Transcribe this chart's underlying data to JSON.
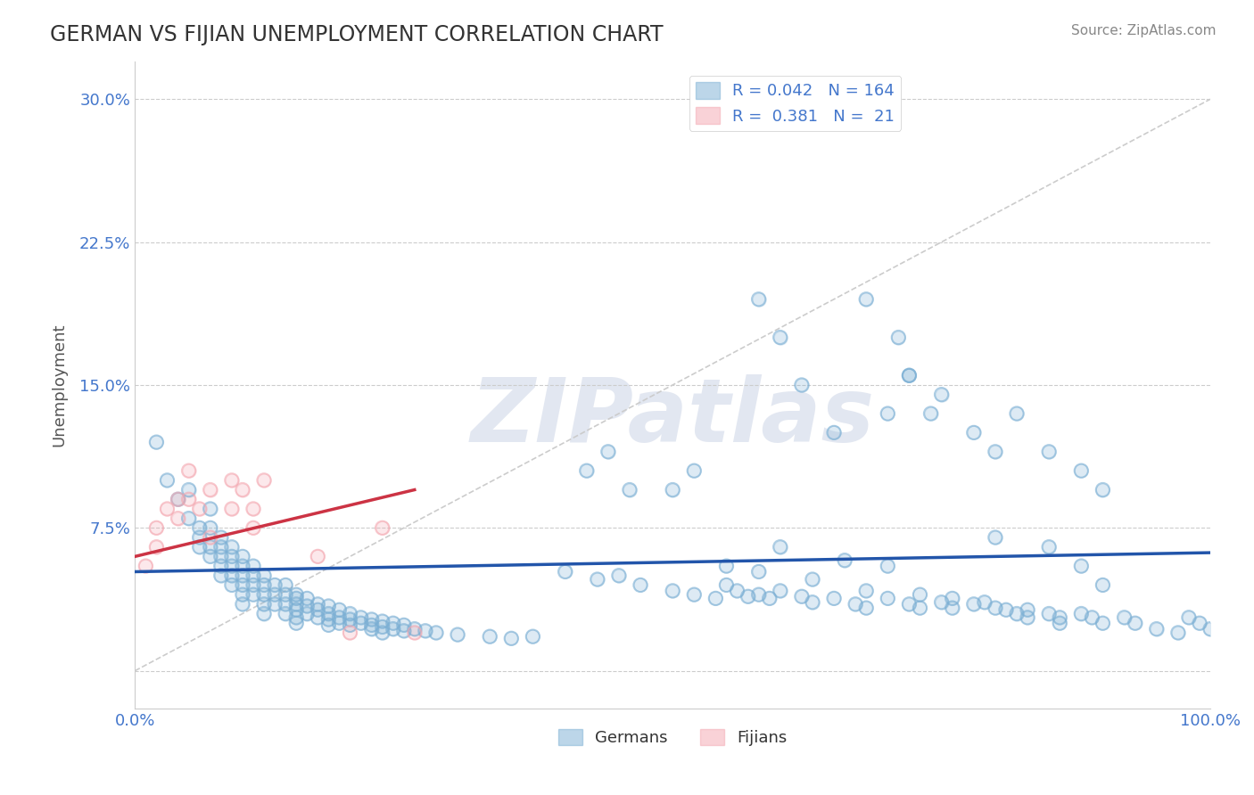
{
  "title": "GERMAN VS FIJIAN UNEMPLOYMENT CORRELATION CHART",
  "source_text": "Source: ZipAtlas.com",
  "xlabel": "",
  "ylabel": "Unemployment",
  "xlim": [
    0,
    1
  ],
  "ylim": [
    -0.02,
    0.32
  ],
  "yticks": [
    0.0,
    0.075,
    0.15,
    0.225,
    0.3
  ],
  "ytick_labels": [
    "",
    "7.5%",
    "15.0%",
    "22.5%",
    "30.0%"
  ],
  "xticks": [
    0.0,
    0.2,
    0.4,
    0.6,
    0.8,
    1.0
  ],
  "xtick_labels": [
    "0.0%",
    "",
    "",
    "",
    "",
    "100.0%"
  ],
  "grid_color": "#cccccc",
  "background_color": "#ffffff",
  "watermark": "ZIPatlas",
  "watermark_color": "#d0d8e8",
  "legend_R_blue": "0.042",
  "legend_N_blue": "164",
  "legend_R_pink": "0.381",
  "legend_N_pink": "21",
  "blue_color": "#7bafd4",
  "pink_color": "#f4a7b0",
  "blue_line_color": "#2255aa",
  "pink_line_color": "#cc3344",
  "ref_line_color": "#cccccc",
  "title_color": "#333333",
  "axis_label_color": "#555555",
  "tick_color": "#4477cc",
  "scatter_alpha": 0.6,
  "marker_size": 120,
  "blue_scatter_x": [
    0.02,
    0.03,
    0.04,
    0.05,
    0.05,
    0.06,
    0.06,
    0.06,
    0.07,
    0.07,
    0.07,
    0.07,
    0.08,
    0.08,
    0.08,
    0.08,
    0.08,
    0.09,
    0.09,
    0.09,
    0.09,
    0.09,
    0.1,
    0.1,
    0.1,
    0.1,
    0.1,
    0.1,
    0.11,
    0.11,
    0.11,
    0.11,
    0.12,
    0.12,
    0.12,
    0.12,
    0.12,
    0.13,
    0.13,
    0.13,
    0.14,
    0.14,
    0.14,
    0.14,
    0.15,
    0.15,
    0.15,
    0.15,
    0.15,
    0.15,
    0.16,
    0.16,
    0.16,
    0.17,
    0.17,
    0.17,
    0.18,
    0.18,
    0.18,
    0.18,
    0.19,
    0.19,
    0.19,
    0.2,
    0.2,
    0.2,
    0.21,
    0.21,
    0.22,
    0.22,
    0.22,
    0.23,
    0.23,
    0.23,
    0.24,
    0.24,
    0.25,
    0.25,
    0.26,
    0.27,
    0.28,
    0.3,
    0.33,
    0.35,
    0.37,
    0.4,
    0.43,
    0.45,
    0.47,
    0.5,
    0.52,
    0.54,
    0.55,
    0.56,
    0.57,
    0.58,
    0.59,
    0.6,
    0.62,
    0.63,
    0.65,
    0.67,
    0.68,
    0.7,
    0.72,
    0.73,
    0.75,
    0.76,
    0.78,
    0.8,
    0.82,
    0.83,
    0.85,
    0.86,
    0.88,
    0.89,
    0.9,
    0.92,
    0.93,
    0.95,
    0.97,
    0.98,
    0.99,
    1.0,
    0.58,
    0.6,
    0.62,
    0.65,
    0.68,
    0.7,
    0.71,
    0.72,
    0.74,
    0.5,
    0.52,
    0.42,
    0.44,
    0.46,
    0.8,
    0.85,
    0.88,
    0.9,
    0.72,
    0.75,
    0.78,
    0.8,
    0.82,
    0.85,
    0.88,
    0.9,
    0.55,
    0.58,
    0.6,
    0.63,
    0.66,
    0.68,
    0.7,
    0.73,
    0.76,
    0.79,
    0.81,
    0.83,
    0.86
  ],
  "blue_scatter_y": [
    0.12,
    0.1,
    0.09,
    0.08,
    0.095,
    0.075,
    0.07,
    0.065,
    0.085,
    0.075,
    0.065,
    0.06,
    0.07,
    0.065,
    0.06,
    0.055,
    0.05,
    0.065,
    0.06,
    0.055,
    0.05,
    0.045,
    0.06,
    0.055,
    0.05,
    0.045,
    0.04,
    0.035,
    0.055,
    0.05,
    0.045,
    0.04,
    0.05,
    0.045,
    0.04,
    0.035,
    0.03,
    0.045,
    0.04,
    0.035,
    0.045,
    0.04,
    0.035,
    0.03,
    0.04,
    0.038,
    0.035,
    0.032,
    0.028,
    0.025,
    0.038,
    0.034,
    0.03,
    0.035,
    0.032,
    0.028,
    0.034,
    0.03,
    0.027,
    0.024,
    0.032,
    0.028,
    0.025,
    0.03,
    0.027,
    0.024,
    0.028,
    0.025,
    0.027,
    0.024,
    0.022,
    0.026,
    0.023,
    0.02,
    0.025,
    0.022,
    0.024,
    0.021,
    0.022,
    0.021,
    0.02,
    0.019,
    0.018,
    0.017,
    0.018,
    0.052,
    0.048,
    0.05,
    0.045,
    0.042,
    0.04,
    0.038,
    0.045,
    0.042,
    0.039,
    0.04,
    0.038,
    0.042,
    0.039,
    0.036,
    0.038,
    0.035,
    0.033,
    0.038,
    0.035,
    0.033,
    0.036,
    0.033,
    0.035,
    0.033,
    0.03,
    0.032,
    0.03,
    0.028,
    0.03,
    0.028,
    0.025,
    0.028,
    0.025,
    0.022,
    0.02,
    0.028,
    0.025,
    0.022,
    0.195,
    0.175,
    0.15,
    0.125,
    0.195,
    0.135,
    0.175,
    0.155,
    0.135,
    0.095,
    0.105,
    0.105,
    0.115,
    0.095,
    0.07,
    0.065,
    0.055,
    0.045,
    0.155,
    0.145,
    0.125,
    0.115,
    0.135,
    0.115,
    0.105,
    0.095,
    0.055,
    0.052,
    0.065,
    0.048,
    0.058,
    0.042,
    0.055,
    0.04,
    0.038,
    0.036,
    0.032,
    0.028,
    0.025
  ],
  "pink_scatter_x": [
    0.01,
    0.02,
    0.02,
    0.03,
    0.04,
    0.04,
    0.05,
    0.05,
    0.06,
    0.07,
    0.07,
    0.09,
    0.09,
    0.1,
    0.11,
    0.11,
    0.12,
    0.17,
    0.2,
    0.23,
    0.26
  ],
  "pink_scatter_y": [
    0.055,
    0.075,
    0.065,
    0.085,
    0.09,
    0.08,
    0.105,
    0.09,
    0.085,
    0.095,
    0.07,
    0.1,
    0.085,
    0.095,
    0.085,
    0.075,
    0.1,
    0.06,
    0.02,
    0.075,
    0.02
  ],
  "blue_trend_x": [
    0.0,
    1.0
  ],
  "blue_trend_y": [
    0.052,
    0.062
  ],
  "pink_trend_x": [
    0.0,
    0.26
  ],
  "pink_trend_y": [
    0.06,
    0.095
  ],
  "ref_line_x": [
    0.0,
    1.0
  ],
  "ref_line_y": [
    0.0,
    0.3
  ]
}
